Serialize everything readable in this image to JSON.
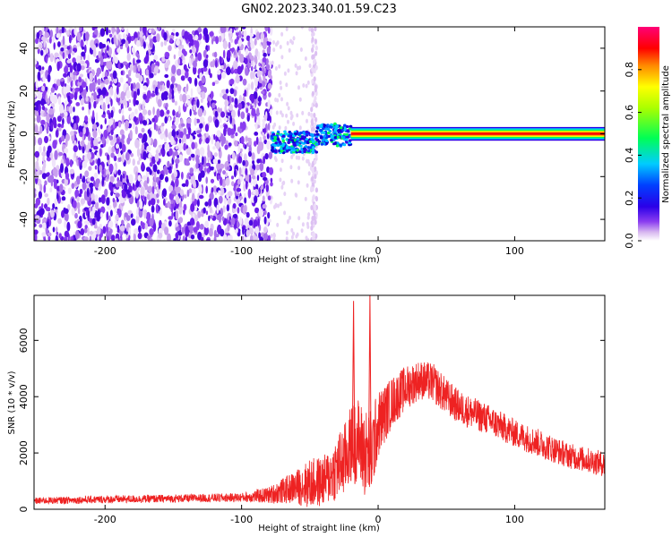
{
  "title": "GN02.2023.340.01.59.C23",
  "chart_data": [
    {
      "type": "heatmap",
      "xlabel": "Height of straight line (km)",
      "ylabel": "Frequency (Hz)",
      "xlim": [
        -252,
        166
      ],
      "ylim": [
        -50,
        50
      ],
      "xticks": [
        -200,
        -100,
        0,
        100
      ],
      "yticks": [
        -40,
        -20,
        0,
        20,
        40
      ],
      "colorbar": {
        "label": "Normalized spectral amplitude",
        "range": [
          0,
          1
        ],
        "ticks": [
          "0.0",
          "0.2",
          "0.4",
          "0.6",
          "0.8"
        ],
        "colormap": [
          "#ffffff",
          "#d8b8f0",
          "#8a3cf0",
          "#2a00e8",
          "#0040ff",
          "#00ccff",
          "#00ff55",
          "#aaff00",
          "#ffff00",
          "#ff8800",
          "#ff0000",
          "#ff0077"
        ]
      },
      "regions": [
        {
          "description": "broadband noise",
          "x_range": [
            -252,
            -78
          ],
          "freq_range": [
            -50,
            50
          ],
          "amplitude": [
            0.0,
            0.25
          ]
        },
        {
          "description": "faint noise",
          "x_range": [
            -78,
            -45
          ],
          "freq_range": [
            -50,
            50
          ],
          "amplitude": [
            0.0,
            0.05
          ]
        },
        {
          "description": "signal onset",
          "x_range": [
            -78,
            -20
          ],
          "freq_range": [
            -8,
            4
          ],
          "amplitude": [
            0.2,
            0.5
          ]
        },
        {
          "description": "carrier line",
          "x_range": [
            -20,
            166
          ],
          "frequency": 0,
          "amplitude": 1.0
        }
      ]
    },
    {
      "type": "line",
      "xlabel": "Height of straight line (km)",
      "ylabel": "SNR (10 * v/v)",
      "xlim": [
        -252,
        166
      ],
      "ylim": [
        0,
        7600
      ],
      "xticks": [
        -200,
        -100,
        0,
        100
      ],
      "yticks": [
        0,
        2000,
        4000,
        6000
      ],
      "color": "#ee2222",
      "series": [
        {
          "name": "",
          "envelope_x": [
            -252,
            -200,
            -150,
            -100,
            -80,
            -60,
            -50,
            -40,
            -35,
            -30,
            -25,
            -20,
            -15,
            -10,
            -5,
            0,
            10,
            20,
            30,
            40,
            50,
            60,
            80,
            100,
            120,
            140,
            166
          ],
          "baseline": [
            300,
            350,
            380,
            420,
            500,
            800,
            900,
            1000,
            1200,
            1500,
            1700,
            2300,
            2500,
            2000,
            2000,
            3000,
            3800,
            4300,
            4600,
            4500,
            4000,
            3600,
            3200,
            2700,
            2300,
            1900,
            1600
          ],
          "spread": [
            120,
            140,
            140,
            160,
            300,
            600,
            900,
            900,
            1000,
            1200,
            1300,
            1400,
            1500,
            1600,
            1600,
            1200,
            900,
            800,
            700,
            700,
            650,
            600,
            550,
            500,
            500,
            450,
            450
          ],
          "spikes": [
            {
              "x": -18,
              "y": 7400
            },
            {
              "x": -6,
              "y": 7600
            }
          ]
        }
      ]
    }
  ]
}
